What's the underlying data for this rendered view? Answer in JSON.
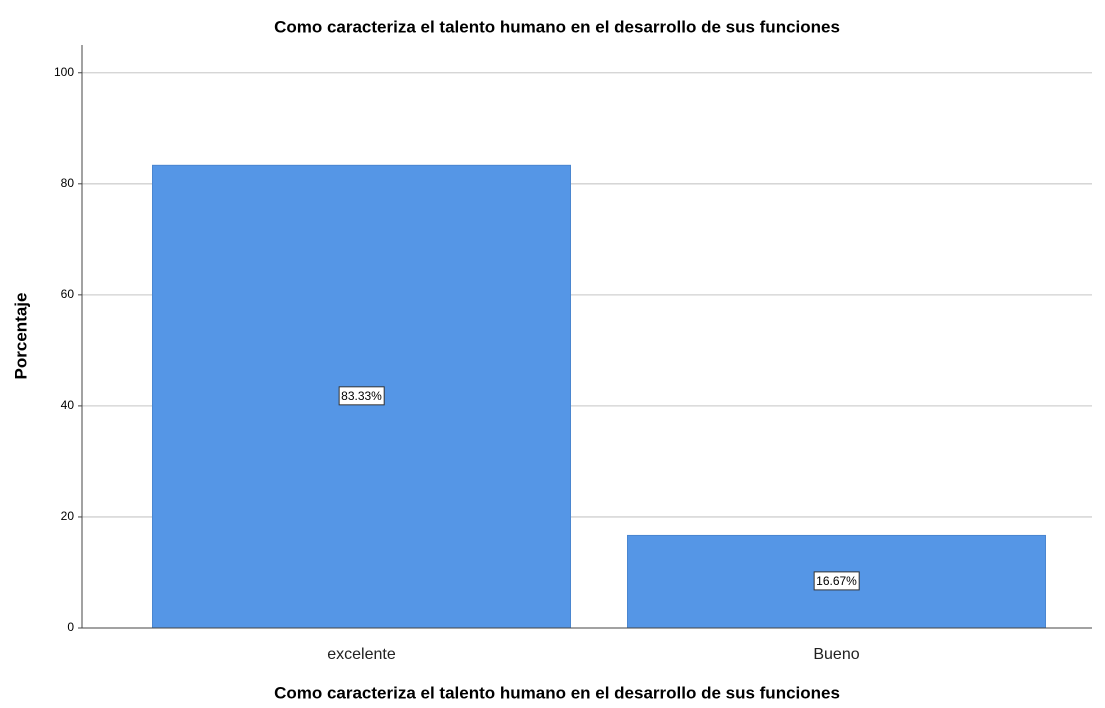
{
  "chart_data": {
    "type": "bar",
    "title": "Como caracteriza el talento humano en el desarrollo de sus funciones",
    "x_label": "Como caracteriza el talento humano en el desarrollo de sus funciones",
    "y_label": "Porcentaje",
    "categories": [
      "excelente",
      "Bueno"
    ],
    "values": [
      83.33,
      16.67
    ],
    "value_labels": [
      "83.33%",
      "16.67%"
    ],
    "color": "#5596e6",
    "ylim": [
      0,
      105
    ],
    "yticks": [
      0,
      20,
      40,
      60,
      80,
      100
    ],
    "grid": true
  }
}
